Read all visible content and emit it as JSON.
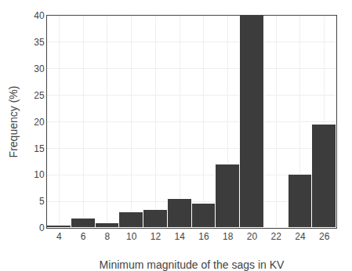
{
  "chart_data": {
    "type": "bar",
    "categories": [
      4,
      6,
      8,
      10,
      12,
      14,
      16,
      18,
      20,
      22,
      24,
      26
    ],
    "values": [
      0.5,
      1.7,
      0.9,
      3.0,
      3.4,
      5.5,
      4.6,
      12.0,
      40.0,
      0.0,
      10.0,
      19.5
    ],
    "color": "#3c3c3c",
    "xlabel": "Minimum magnitude of the sags in KV",
    "ylabel": "Frequency (%)",
    "xlim": [
      3,
      27
    ],
    "ylim": [
      0,
      40
    ],
    "xticks": [
      4,
      6,
      8,
      10,
      12,
      14,
      16,
      18,
      20,
      22,
      24,
      26
    ],
    "yticks": [
      0,
      5,
      10,
      15,
      20,
      25,
      30,
      35,
      40
    ],
    "grid": true
  }
}
